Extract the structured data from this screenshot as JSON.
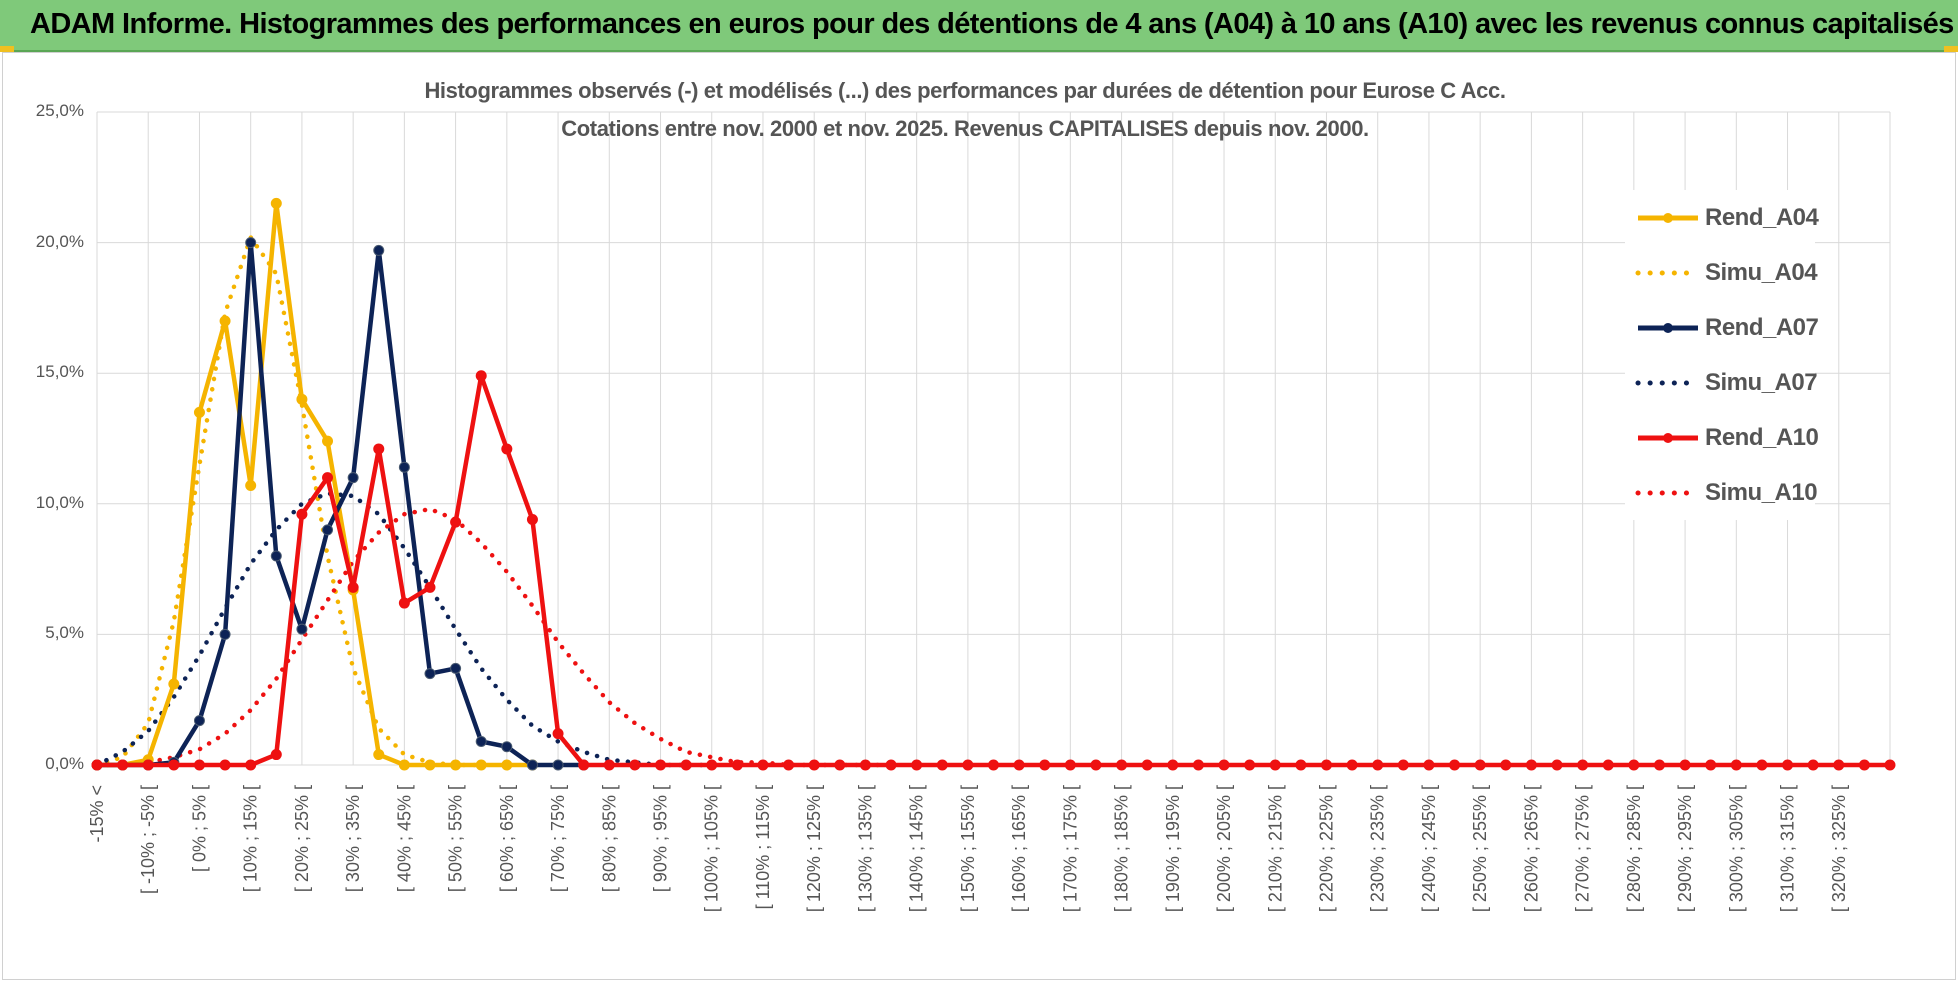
{
  "banner": {
    "title": "ADAM Informe. Histogrammes des performances en euros pour des détentions de 4 ans (A04) à 10 ans (A10) avec les revenus connus capitalisés"
  },
  "colors": {
    "banner_bg": "#7fc97a",
    "A04": "#f5b400",
    "A07": "#0d2356",
    "A10": "#ee1111",
    "grid": "#d9d9d9",
    "text": "#555555"
  },
  "chart_data": {
    "type": "line",
    "title_lines": [
      "Histogrammes observés (-) et modélisés (...) des performances par durées de détention pour Eurose C Acc.",
      "Cotations entre nov. 2000 et nov. 2025. Revenus CAPITALISES depuis nov. 2000."
    ],
    "ylim": [
      0,
      25
    ],
    "yticks": [
      "0,0%",
      "5,0%",
      "10,0%",
      "15,0%",
      "20,0%",
      "25,0%"
    ],
    "ytick_values": [
      0,
      5,
      10,
      15,
      20,
      25
    ],
    "grid": true,
    "legend_position": "right",
    "x_labels": [
      "-15% <",
      "[ -10% ; -5% [",
      "[ 0% ; 5% [",
      "[ 10% ; 15% [",
      "[ 20% ; 25% [",
      "[ 30% ; 35% [",
      "[ 40% ; 45% [",
      "[ 50% ; 55% [",
      "[ 60% ; 65% [",
      "[ 70% ; 75% [",
      "[ 80% ; 85% [",
      "[ 90% ; 95% [",
      "[ 100% ; 105% [",
      "[ 110% ; 115% [",
      "[ 120% ; 125% [",
      "[ 130% ; 135% [",
      "[ 140% ; 145% [",
      "[ 150% ; 155% [",
      "[ 160% ; 165% [",
      "[ 170% ; 175% [",
      "[ 180% ; 185% [",
      "[ 190% ; 195% [",
      "[ 200% ; 205% [",
      "[ 210% ; 215% [",
      "[ 220% ; 225% [",
      "[ 230% ; 235% [",
      "[ 240% ; 245% [",
      "[ 250% ; 255% [",
      "[ 260% ; 265% [",
      "[ 270% ; 275% [",
      "[ 280% ; 285% [",
      "[ 290% ; 295% [",
      "[ 300% ; 305% [",
      "[ 310% ; 315% [",
      "[ 320% ; 325% ["
    ],
    "num_bins": 71,
    "series": [
      {
        "name": "Rend_A04",
        "color_key": "A04",
        "dotted": false,
        "markers": true,
        "values": [
          0,
          0,
          0.2,
          3.1,
          13.5,
          17,
          10.7,
          21.5,
          14,
          12.4,
          6.7,
          0.4,
          0,
          0,
          0,
          0,
          0,
          0
        ]
      },
      {
        "name": "Simu_A04",
        "color_key": "A04",
        "dotted": true,
        "markers": false,
        "values": [
          0,
          0.3,
          1.6,
          5.5,
          11.5,
          17.3,
          20.2,
          18.8,
          13.8,
          8,
          3.7,
          1.4,
          0.4,
          0.1,
          0,
          0
        ]
      },
      {
        "name": "Rend_A07",
        "color_key": "A07",
        "dotted": false,
        "markers": true,
        "values": [
          0,
          0,
          0,
          0.1,
          1.7,
          5,
          20,
          8,
          5.2,
          9,
          11,
          19.7,
          11.4,
          3.5,
          3.7,
          0.9,
          0.7,
          0,
          0,
          0
        ]
      },
      {
        "name": "Simu_A07",
        "color_key": "A07",
        "dotted": true,
        "markers": false,
        "values": [
          0,
          0.5,
          1.3,
          2.6,
          4.2,
          6,
          7.7,
          9,
          10,
          10.4,
          10.3,
          9.6,
          8.3,
          6.8,
          5.2,
          3.7,
          2.5,
          1.5,
          0.9,
          0.5,
          0.2,
          0.1,
          0,
          0,
          0
        ]
      },
      {
        "name": "Rend_A10",
        "color_key": "A10",
        "dotted": false,
        "markers": true,
        "values": [
          0,
          0,
          0,
          0,
          0,
          0,
          0,
          0.4,
          9.6,
          11,
          6.8,
          12.1,
          6.2,
          6.8,
          9.3,
          14.9,
          12.1,
          9.4,
          1.2,
          0,
          0,
          0,
          0,
          0,
          0,
          0,
          0,
          0,
          0,
          0,
          0,
          0,
          0,
          0,
          0,
          0,
          0,
          0,
          0,
          0,
          0,
          0,
          0,
          0,
          0,
          0,
          0,
          0,
          0,
          0,
          0,
          0,
          0,
          0,
          0,
          0,
          0,
          0,
          0,
          0,
          0,
          0,
          0,
          0,
          0,
          0,
          0,
          0,
          0,
          0,
          0
        ]
      },
      {
        "name": "Simu_A10",
        "color_key": "A10",
        "dotted": true,
        "markers": false,
        "values": [
          0,
          0,
          0.1,
          0.3,
          0.6,
          1.2,
          2.1,
          3.3,
          4.8,
          6.3,
          7.8,
          8.9,
          9.6,
          9.8,
          9.4,
          8.5,
          7.4,
          6.1,
          4.7,
          3.5,
          2.4,
          1.6,
          1,
          0.5,
          0.3,
          0.1,
          0.1,
          0,
          0,
          0,
          0,
          0
        ]
      }
    ]
  }
}
